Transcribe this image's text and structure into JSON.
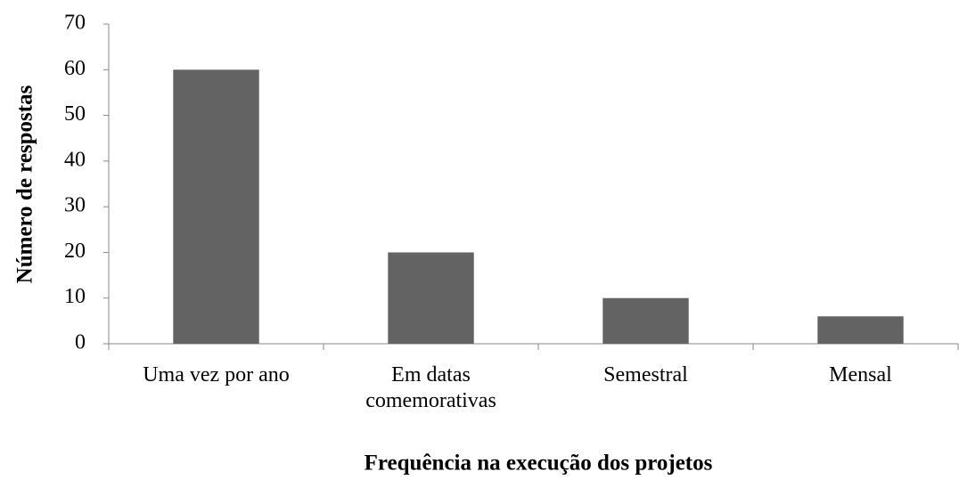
{
  "chart_data": {
    "type": "bar",
    "xlabel": "Frequência na execução dos projetos",
    "ylabel": "Número de respostas",
    "categories": [
      "Uma vez por ano",
      "Em datas comemorativas",
      "Semestral",
      "Mensal"
    ],
    "values": [
      60,
      20,
      10,
      6
    ],
    "color": "#636363",
    "ylim": [
      0,
      70
    ],
    "yticks": [
      0,
      10,
      20,
      30,
      40,
      50,
      60,
      70
    ],
    "grid": false
  }
}
